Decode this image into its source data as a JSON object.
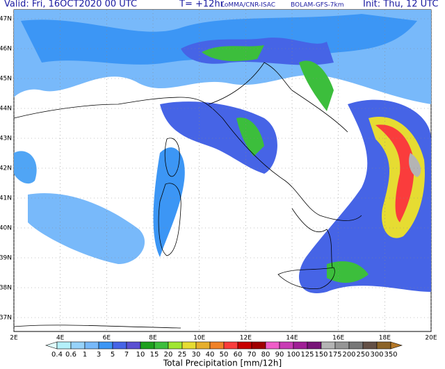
{
  "header": {
    "valid": "Valid: Fri, 16OCT2020   00 UTC",
    "lead": "T= +12hr",
    "institute": "LoMMA/CNR-ISAC",
    "model": "BOLAM-GFS-7km",
    "init": "Init: Thu, 12 UTC"
  },
  "map": {
    "lat_labels": [
      "47N",
      "46N",
      "45N",
      "44N",
      "43N",
      "42N",
      "41N",
      "40N",
      "39N",
      "38N",
      "37N"
    ],
    "lon_labels": [
      "2E",
      "4E",
      "6E",
      "8E",
      "10E",
      "12E",
      "14E",
      "16E",
      "18E",
      "20E"
    ]
  },
  "colorbar": {
    "title": "Total Precipitation [mm/12h]",
    "levels": [
      0.4,
      0.6,
      1,
      3,
      5,
      7,
      10,
      15,
      20,
      25,
      30,
      40,
      50,
      60,
      70,
      80,
      90,
      100,
      125,
      150,
      175,
      200,
      250,
      300,
      350
    ],
    "colors": [
      "#e1ffff",
      "#b4f0fa",
      "#96d2fa",
      "#78b9fa",
      "#3c96f5",
      "#4664e6",
      "#5a50d2",
      "#1ea01e",
      "#3cbe3c",
      "#a0e632",
      "#e6dc32",
      "#e6af2d",
      "#f08228",
      "#fa3c3c",
      "#c80000",
      "#a00000",
      "#f05dc8",
      "#c83cb4",
      "#a01e96",
      "#781478",
      "#b4b4b4",
      "#969696",
      "#787878",
      "#645046",
      "#8c6428",
      "#b47828"
    ]
  }
}
